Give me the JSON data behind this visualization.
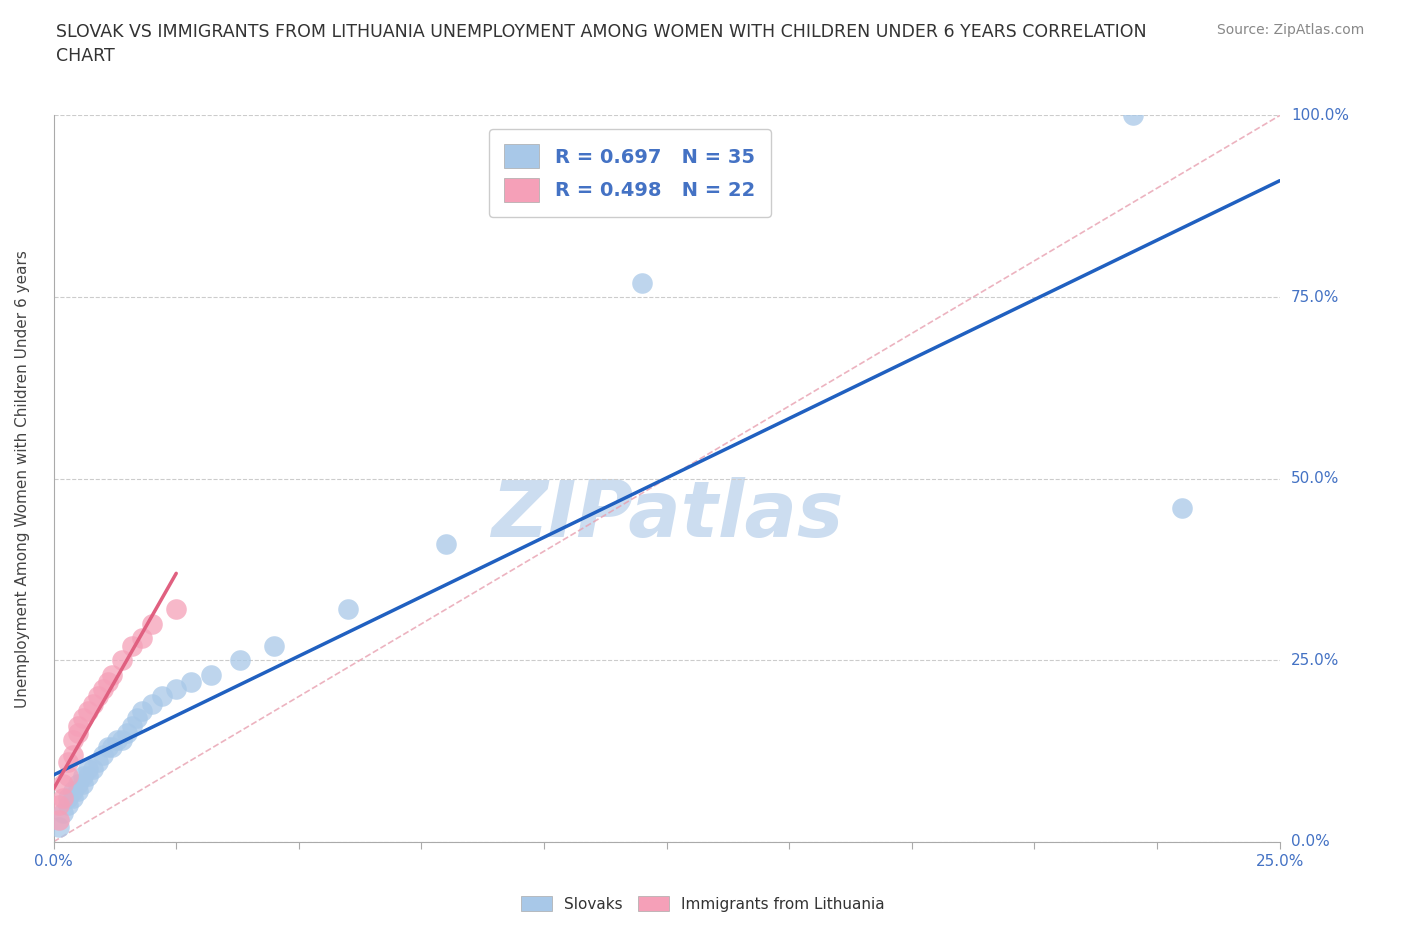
{
  "title": "SLOVAK VS IMMIGRANTS FROM LITHUANIA UNEMPLOYMENT AMONG WOMEN WITH CHILDREN UNDER 6 YEARS CORRELATION\nCHART",
  "source": "Source: ZipAtlas.com",
  "ylabel": "Unemployment Among Women with Children Under 6 years",
  "xlim": [
    0,
    0.25
  ],
  "ylim": [
    0,
    1.0
  ],
  "R_slovak": 0.697,
  "N_slovak": 35,
  "R_lithuania": 0.498,
  "N_lithuania": 22,
  "slovak_color": "#a8c8e8",
  "lithuania_color": "#f5a0b8",
  "regression_slovak_color": "#2060c0",
  "regression_lithuania_color": "#e06080",
  "watermark_color": "#ccddf0",
  "background_color": "#ffffff",
  "slovak_x": [
    0.001,
    0.002,
    0.003,
    0.003,
    0.004,
    0.004,
    0.005,
    0.005,
    0.006,
    0.006,
    0.007,
    0.007,
    0.008,
    0.009,
    0.01,
    0.011,
    0.012,
    0.013,
    0.014,
    0.015,
    0.016,
    0.017,
    0.018,
    0.02,
    0.022,
    0.025,
    0.028,
    0.032,
    0.038,
    0.045,
    0.06,
    0.08,
    0.12,
    0.22,
    0.23
  ],
  "slovak_y": [
    0.02,
    0.04,
    0.05,
    0.06,
    0.06,
    0.07,
    0.07,
    0.08,
    0.08,
    0.09,
    0.09,
    0.1,
    0.1,
    0.11,
    0.12,
    0.13,
    0.13,
    0.14,
    0.14,
    0.15,
    0.16,
    0.17,
    0.18,
    0.19,
    0.2,
    0.21,
    0.22,
    0.23,
    0.25,
    0.27,
    0.32,
    0.41,
    0.77,
    1.0,
    0.46
  ],
  "lithuania_x": [
    0.001,
    0.001,
    0.002,
    0.002,
    0.003,
    0.003,
    0.004,
    0.004,
    0.005,
    0.005,
    0.006,
    0.007,
    0.008,
    0.009,
    0.01,
    0.011,
    0.012,
    0.014,
    0.016,
    0.018,
    0.02,
    0.025
  ],
  "lithuania_y": [
    0.03,
    0.05,
    0.06,
    0.08,
    0.09,
    0.11,
    0.12,
    0.14,
    0.15,
    0.16,
    0.17,
    0.18,
    0.19,
    0.2,
    0.21,
    0.22,
    0.23,
    0.25,
    0.27,
    0.28,
    0.3,
    0.32
  ]
}
